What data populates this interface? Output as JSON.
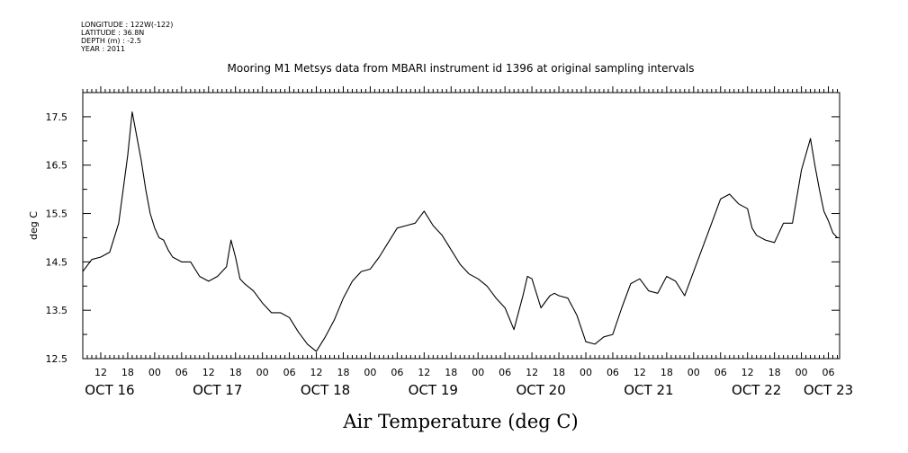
{
  "header": {
    "meta_lines": [
      "LONGITUDE : 122W(-122)",
      "LATITUDE : 36.8N",
      "DEPTH (m) : -2.5",
      "YEAR : 2011"
    ],
    "title": "Mooring M1 Metsys data from MBARI instrument id 1396 at original sampling intervals"
  },
  "chart_data": {
    "type": "line",
    "title": "Mooring M1 Metsys data from MBARI instrument id 1396 at original sampling intervals",
    "xlabel": "Air Temperature (deg C)",
    "ylabel": "deg C",
    "ylim": [
      12.5,
      18.0
    ],
    "yticks": [
      12.5,
      13.5,
      14.5,
      15.5,
      16.5,
      17.5
    ],
    "ytick_labels": [
      "12.5",
      "13.5",
      "14.5",
      "15.5",
      "16.5",
      "17.5"
    ],
    "x_unit": "hours since Oct 16 00:00, 2011",
    "xlim": [
      8,
      176.5
    ],
    "hour_ticks": [
      12,
      18,
      24,
      30,
      36,
      42,
      48,
      54,
      60,
      66,
      72,
      78,
      84,
      90,
      96,
      102,
      108,
      114,
      120,
      126,
      132,
      138,
      144,
      150,
      156,
      162,
      168,
      174
    ],
    "hour_tick_labels": [
      "12",
      "18",
      "00",
      "06",
      "12",
      "18",
      "00",
      "06",
      "12",
      "18",
      "00",
      "06",
      "12",
      "18",
      "00",
      "06",
      "12",
      "18",
      "00",
      "06",
      "12",
      "18",
      "00",
      "06",
      "12",
      "18",
      "00",
      "06"
    ],
    "date_labels": [
      {
        "hour": 12,
        "label": "OCT 16"
      },
      {
        "hour": 36,
        "label": "OCT 17"
      },
      {
        "hour": 60,
        "label": "OCT 18"
      },
      {
        "hour": 84,
        "label": "OCT 19"
      },
      {
        "hour": 108,
        "label": "OCT 20"
      },
      {
        "hour": 132,
        "label": "OCT 21"
      },
      {
        "hour": 156,
        "label": "OCT 22"
      },
      {
        "hour": 172,
        "label": "OCT 23"
      }
    ],
    "series": [
      {
        "color": "#000000",
        "x": [
          8,
          10,
          12,
          14,
          16,
          18,
          19,
          20,
          21,
          22,
          23,
          24,
          25,
          26,
          27,
          28,
          30,
          32,
          34,
          36,
          38,
          40,
          41,
          42,
          43,
          44,
          46,
          48,
          50,
          52,
          54,
          56,
          58,
          60,
          62,
          64,
          66,
          68,
          70,
          72,
          74,
          76,
          78,
          80,
          82,
          84,
          86,
          88,
          90,
          92,
          94,
          96,
          98,
          100,
          102,
          104,
          106,
          107,
          108,
          110,
          112,
          113,
          114,
          116,
          118,
          120,
          122,
          124,
          126,
          128,
          130,
          132,
          134,
          136,
          138,
          140,
          142,
          144,
          146,
          148,
          150,
          152,
          154,
          156,
          157,
          158,
          160,
          162,
          164,
          166,
          168,
          170,
          171,
          172,
          173,
          174,
          175,
          176
        ],
        "y": [
          14.3,
          14.55,
          14.6,
          14.7,
          15.3,
          16.7,
          17.6,
          17.1,
          16.6,
          16.0,
          15.5,
          15.2,
          15.0,
          14.95,
          14.75,
          14.6,
          14.5,
          14.5,
          14.2,
          14.1,
          14.2,
          14.4,
          14.95,
          14.6,
          14.15,
          14.05,
          13.9,
          13.65,
          13.45,
          13.45,
          13.35,
          13.05,
          12.8,
          12.65,
          12.95,
          13.3,
          13.75,
          14.1,
          14.3,
          14.35,
          14.6,
          14.9,
          15.2,
          15.25,
          15.3,
          15.55,
          15.25,
          15.05,
          14.75,
          14.45,
          14.25,
          14.15,
          14.0,
          13.75,
          13.55,
          13.1,
          13.8,
          14.2,
          14.15,
          13.55,
          13.8,
          13.85,
          13.8,
          13.75,
          13.4,
          12.85,
          12.8,
          12.95,
          13.0,
          13.55,
          14.05,
          14.15,
          13.9,
          13.85,
          14.2,
          14.1,
          13.8,
          14.3,
          14.8,
          15.3,
          15.8,
          15.9,
          15.7,
          15.6,
          15.2,
          15.05,
          14.95,
          14.9,
          15.3,
          15.3,
          16.4,
          17.05,
          16.5,
          16.0,
          15.55,
          15.35,
          15.1,
          15.0
        ]
      }
    ]
  }
}
